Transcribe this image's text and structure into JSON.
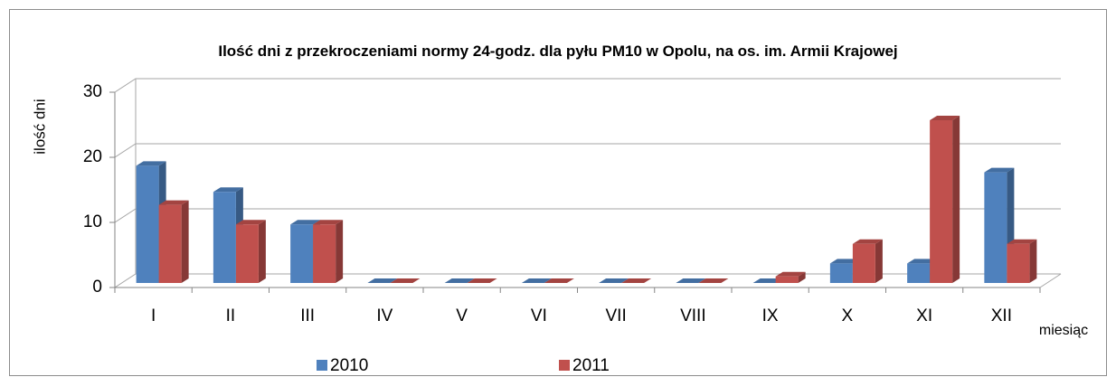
{
  "chart_data": {
    "type": "bar3d",
    "title": "Ilość dni z przekroczeniami normy 24-godz. dla pyłu PM10 w Opolu, na os. im. Armii Krajowej",
    "ylabel": "ilość dni",
    "xlabel": "miesiąc",
    "categories": [
      "I",
      "II",
      "III",
      "IV",
      "V",
      "VI",
      "VII",
      "VIII",
      "IX",
      "X",
      "XI",
      "XII"
    ],
    "series": [
      {
        "name": "2010",
        "color": "#4f81bd",
        "values": [
          18,
          14,
          9,
          0,
          0,
          0,
          0,
          0,
          0,
          3,
          3,
          17
        ]
      },
      {
        "name": "2011",
        "color": "#c0504d",
        "values": [
          12,
          9,
          9,
          0,
          0,
          0,
          0,
          0,
          1,
          6,
          25,
          6
        ]
      }
    ],
    "ylim": [
      0,
      30
    ],
    "yticks": [
      0,
      10,
      20,
      30
    ],
    "grid": true,
    "legend": "bottom"
  }
}
